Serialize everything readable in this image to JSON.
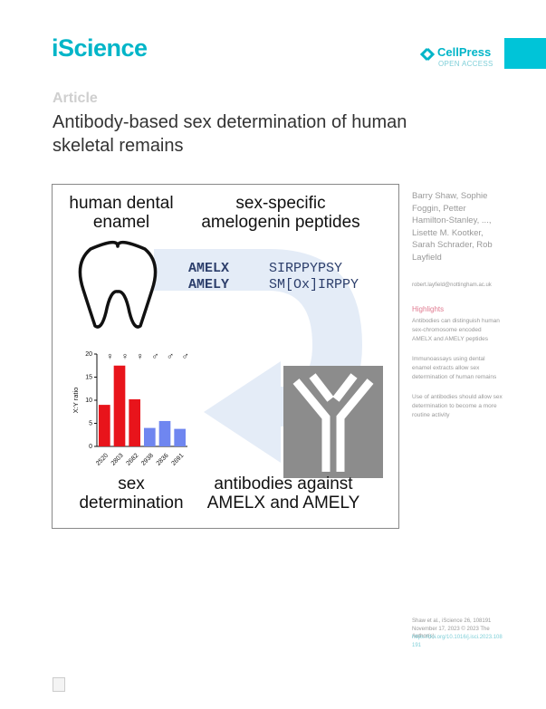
{
  "header": {
    "journal": "iScience",
    "publisher": "CellPress",
    "access": "OPEN ACCESS"
  },
  "article": {
    "type": "Article",
    "title": "Antibody-based sex determination of human skeletal remains"
  },
  "graphical_abstract": {
    "top_left": [
      "human dental",
      "enamel"
    ],
    "top_right": [
      "sex-specific",
      "amelogenin peptides"
    ],
    "sequences": [
      {
        "name": "AMELX",
        "peptide": "SIRPPYPSY"
      },
      {
        "name": "AMELY",
        "peptide": "SM[Ox]IRPPY"
      }
    ],
    "bottom_left": [
      "sex",
      "determination"
    ],
    "bottom_right": [
      "antibodies against",
      "AMELX and AMELY"
    ]
  },
  "chart_data": {
    "type": "bar",
    "ylabel": "X:Y ratio",
    "categories": [
      "2520",
      "2803",
      "2682",
      "2938",
      "2836",
      "2691"
    ],
    "sexes": [
      "♀",
      "♀",
      "♀",
      "♂",
      "♂",
      "♂"
    ],
    "values": [
      9,
      17.5,
      10.2,
      4,
      5.5,
      3.8
    ],
    "colors": [
      "#e8141b",
      "#e8141b",
      "#e8141b",
      "#6f86f0",
      "#6f86f0",
      "#6f86f0"
    ],
    "ylim": [
      0,
      20
    ],
    "yticks": [
      0,
      5,
      10,
      15,
      20
    ]
  },
  "sidebar": {
    "authors": "Barry Shaw, Sophie Foggin, Petter Hamilton-Stanley, ..., Lisette M. Kootker, Sarah Schrader, Rob Layfield",
    "email": "robert.layfield@nottingham.ac.uk",
    "highlights_title": "Highlights",
    "highlights": [
      "Antibodies can distinguish human sex-chromosome encoded AMELX and AMELY peptides",
      "Immunoassays using dental enamel extracts allow sex determination of human remains",
      "Use of antibodies should allow sex determination to become a more routine activity"
    ],
    "citation": "Shaw et al., iScience 26, 108191 November 17, 2023 © 2023 The Author(s).",
    "doi": "https://doi.org/10.1016/j.isci.2023.108191"
  }
}
